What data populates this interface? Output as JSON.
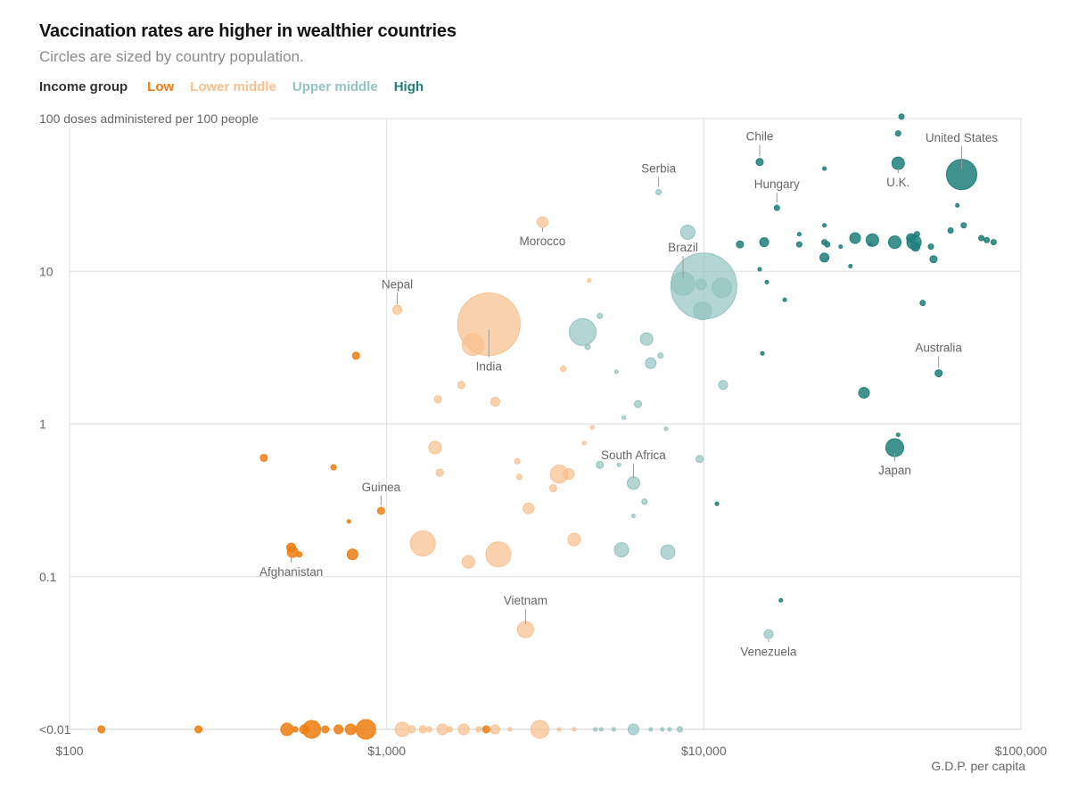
{
  "header": {
    "title": "Vaccination rates are higher in wealthier countries",
    "subtitle": "Circles are sized by country population."
  },
  "legend": {
    "title": "Income group",
    "items": [
      {
        "key": "low",
        "label": "Low",
        "color": "#f07d10"
      },
      {
        "key": "lower_middle",
        "label": "Lower middle",
        "color": "#f9bf8c"
      },
      {
        "key": "upper_middle",
        "label": "Upper middle",
        "color": "#93c3c1"
      },
      {
        "key": "high",
        "label": "High",
        "color": "#1f7f7b"
      }
    ]
  },
  "chart_data": {
    "type": "scatter",
    "x_scale": "log",
    "y_scale": "log",
    "xlim": [
      100,
      100000
    ],
    "ylim": [
      0.01,
      100
    ],
    "xlabel": "G.D.P. per capita",
    "ylabel": "100 doses administered per 100 people",
    "x_ticks": [
      {
        "value": 100,
        "label": "$100"
      },
      {
        "value": 1000,
        "label": "$1,000"
      },
      {
        "value": 10000,
        "label": "$10,000"
      },
      {
        "value": 100000,
        "label": "$100,000"
      }
    ],
    "y_ticks": [
      {
        "value": 100,
        "label": ""
      },
      {
        "value": 10,
        "label": "10"
      },
      {
        "value": 1,
        "label": "1"
      },
      {
        "value": 0.1,
        "label": "0.1"
      },
      {
        "value": 0.01,
        "label": "<0.01"
      }
    ],
    "size_encoding": "population",
    "grid": true,
    "points": [
      {
        "x": 42000,
        "y": 103,
        "g": "high",
        "s": 3
      },
      {
        "x": 41000,
        "y": 80,
        "g": "high",
        "s": 3
      },
      {
        "x": 15000,
        "y": 52,
        "g": "high",
        "s": 4
      },
      {
        "x": 24000,
        "y": 47,
        "g": "high",
        "s": 2
      },
      {
        "x": 41000,
        "y": 51,
        "g": "high",
        "s": 7
      },
      {
        "x": 65000,
        "y": 43,
        "g": "high",
        "s": 17
      },
      {
        "x": 17000,
        "y": 26,
        "g": "high",
        "s": 3
      },
      {
        "x": 63000,
        "y": 27,
        "g": "high",
        "s": 2
      },
      {
        "x": 24000,
        "y": 20,
        "g": "high",
        "s": 2
      },
      {
        "x": 66000,
        "y": 20,
        "g": "high",
        "s": 3
      },
      {
        "x": 60000,
        "y": 18.5,
        "g": "high",
        "s": 3
      },
      {
        "x": 20000,
        "y": 17.5,
        "g": "high",
        "s": 2
      },
      {
        "x": 30000,
        "y": 16.5,
        "g": "high",
        "s": 6
      },
      {
        "x": 34000,
        "y": 16,
        "g": "high",
        "s": 7
      },
      {
        "x": 45000,
        "y": 16.5,
        "g": "high",
        "s": 5
      },
      {
        "x": 47000,
        "y": 17.5,
        "g": "high",
        "s": 3
      },
      {
        "x": 75000,
        "y": 16.5,
        "g": "high",
        "s": 3
      },
      {
        "x": 78000,
        "y": 16,
        "g": "high",
        "s": 3
      },
      {
        "x": 82000,
        "y": 15.5,
        "g": "high",
        "s": 3
      },
      {
        "x": 15500,
        "y": 15.5,
        "g": "high",
        "s": 5
      },
      {
        "x": 13000,
        "y": 15,
        "g": "high",
        "s": 4
      },
      {
        "x": 20000,
        "y": 15,
        "g": "high",
        "s": 3
      },
      {
        "x": 24000,
        "y": 15.5,
        "g": "high",
        "s": 3
      },
      {
        "x": 24500,
        "y": 15,
        "g": "high",
        "s": 3
      },
      {
        "x": 33500,
        "y": 15,
        "g": "high",
        "s": 2
      },
      {
        "x": 40000,
        "y": 15.5,
        "g": "high",
        "s": 7
      },
      {
        "x": 46000,
        "y": 15.5,
        "g": "high",
        "s": 8
      },
      {
        "x": 46500,
        "y": 14.5,
        "g": "high",
        "s": 5
      },
      {
        "x": 52000,
        "y": 14.5,
        "g": "high",
        "s": 3
      },
      {
        "x": 27000,
        "y": 14.5,
        "g": "high",
        "s": 2
      },
      {
        "x": 24000,
        "y": 12.3,
        "g": "high",
        "s": 5
      },
      {
        "x": 53000,
        "y": 12,
        "g": "high",
        "s": 4
      },
      {
        "x": 29000,
        "y": 10.8,
        "g": "high",
        "s": 2
      },
      {
        "x": 15000,
        "y": 10.3,
        "g": "high",
        "s": 2
      },
      {
        "x": 15800,
        "y": 8.5,
        "g": "high",
        "s": 2
      },
      {
        "x": 18000,
        "y": 6.5,
        "g": "high",
        "s": 2
      },
      {
        "x": 49000,
        "y": 6.2,
        "g": "high",
        "s": 3
      },
      {
        "x": 15300,
        "y": 2.9,
        "g": "high",
        "s": 2
      },
      {
        "x": 55000,
        "y": 2.15,
        "g": "high",
        "s": 4
      },
      {
        "x": 32000,
        "y": 1.6,
        "g": "high",
        "s": 6
      },
      {
        "x": 40000,
        "y": 0.7,
        "g": "high",
        "s": 10
      },
      {
        "x": 41000,
        "y": 0.85,
        "g": "high",
        "s": 2
      },
      {
        "x": 11000,
        "y": 0.3,
        "g": "high",
        "s": 2
      },
      {
        "x": 17500,
        "y": 0.07,
        "g": "high",
        "s": 2
      },
      {
        "x": 7200,
        "y": 33,
        "g": "upper_middle",
        "s": 3
      },
      {
        "x": 8900,
        "y": 18,
        "g": "upper_middle",
        "s": 8
      },
      {
        "x": 10000,
        "y": 8,
        "g": "upper_middle",
        "s": 37
      },
      {
        "x": 8600,
        "y": 8.3,
        "g": "upper_middle",
        "s": 13
      },
      {
        "x": 11400,
        "y": 7.8,
        "g": "upper_middle",
        "s": 11
      },
      {
        "x": 9900,
        "y": 5.5,
        "g": "upper_middle",
        "s": 10
      },
      {
        "x": 9800,
        "y": 8.2,
        "g": "upper_middle",
        "s": 6
      },
      {
        "x": 4150,
        "y": 4,
        "g": "upper_middle",
        "s": 15
      },
      {
        "x": 4700,
        "y": 5.1,
        "g": "upper_middle",
        "s": 3
      },
      {
        "x": 4300,
        "y": 3.2,
        "g": "upper_middle",
        "s": 3
      },
      {
        "x": 6600,
        "y": 3.6,
        "g": "upper_middle",
        "s": 7
      },
      {
        "x": 7300,
        "y": 2.8,
        "g": "upper_middle",
        "s": 3
      },
      {
        "x": 6800,
        "y": 2.5,
        "g": "upper_middle",
        "s": 6
      },
      {
        "x": 5300,
        "y": 2.2,
        "g": "upper_middle",
        "s": 2
      },
      {
        "x": 11500,
        "y": 1.8,
        "g": "upper_middle",
        "s": 5
      },
      {
        "x": 6200,
        "y": 1.35,
        "g": "upper_middle",
        "s": 4
      },
      {
        "x": 5600,
        "y": 1.1,
        "g": "upper_middle",
        "s": 2
      },
      {
        "x": 7600,
        "y": 0.93,
        "g": "upper_middle",
        "s": 2
      },
      {
        "x": 9700,
        "y": 0.59,
        "g": "upper_middle",
        "s": 4
      },
      {
        "x": 4700,
        "y": 0.54,
        "g": "upper_middle",
        "s": 4
      },
      {
        "x": 5400,
        "y": 0.54,
        "g": "upper_middle",
        "s": 2
      },
      {
        "x": 6000,
        "y": 0.41,
        "g": "upper_middle",
        "s": 7
      },
      {
        "x": 6500,
        "y": 0.31,
        "g": "upper_middle",
        "s": 3
      },
      {
        "x": 6000,
        "y": 0.25,
        "g": "upper_middle",
        "s": 2
      },
      {
        "x": 5500,
        "y": 0.15,
        "g": "upper_middle",
        "s": 8
      },
      {
        "x": 7700,
        "y": 0.145,
        "g": "upper_middle",
        "s": 8
      },
      {
        "x": 16000,
        "y": 0.042,
        "g": "upper_middle",
        "s": 5
      },
      {
        "x": 3100,
        "y": 21,
        "g": "lower_middle",
        "s": 6
      },
      {
        "x": 4350,
        "y": 8.7,
        "g": "lower_middle",
        "s": 2
      },
      {
        "x": 1080,
        "y": 5.6,
        "g": "lower_middle",
        "s": 5
      },
      {
        "x": 2100,
        "y": 4.5,
        "g": "lower_middle",
        "s": 35
      },
      {
        "x": 1870,
        "y": 3.3,
        "g": "lower_middle",
        "s": 12
      },
      {
        "x": 3600,
        "y": 2.3,
        "g": "lower_middle",
        "s": 3
      },
      {
        "x": 1720,
        "y": 1.8,
        "g": "lower_middle",
        "s": 4
      },
      {
        "x": 1450,
        "y": 1.45,
        "g": "lower_middle",
        "s": 4
      },
      {
        "x": 2200,
        "y": 1.4,
        "g": "lower_middle",
        "s": 5
      },
      {
        "x": 4450,
        "y": 0.95,
        "g": "lower_middle",
        "s": 2
      },
      {
        "x": 4200,
        "y": 0.75,
        "g": "lower_middle",
        "s": 2
      },
      {
        "x": 1420,
        "y": 0.7,
        "g": "lower_middle",
        "s": 7
      },
      {
        "x": 2580,
        "y": 0.57,
        "g": "lower_middle",
        "s": 3
      },
      {
        "x": 3500,
        "y": 0.47,
        "g": "lower_middle",
        "s": 10
      },
      {
        "x": 3750,
        "y": 0.47,
        "g": "lower_middle",
        "s": 6
      },
      {
        "x": 1470,
        "y": 0.48,
        "g": "lower_middle",
        "s": 4
      },
      {
        "x": 2620,
        "y": 0.45,
        "g": "lower_middle",
        "s": 3
      },
      {
        "x": 3350,
        "y": 0.38,
        "g": "lower_middle",
        "s": 4
      },
      {
        "x": 2800,
        "y": 0.28,
        "g": "lower_middle",
        "s": 6
      },
      {
        "x": 1300,
        "y": 0.165,
        "g": "lower_middle",
        "s": 14
      },
      {
        "x": 3900,
        "y": 0.175,
        "g": "lower_middle",
        "s": 7
      },
      {
        "x": 2250,
        "y": 0.14,
        "g": "lower_middle",
        "s": 14
      },
      {
        "x": 1810,
        "y": 0.125,
        "g": "lower_middle",
        "s": 7
      },
      {
        "x": 2740,
        "y": 0.045,
        "g": "lower_middle",
        "s": 9
      },
      {
        "x": 800,
        "y": 2.8,
        "g": "low",
        "s": 4
      },
      {
        "x": 410,
        "y": 0.6,
        "g": "low",
        "s": 4
      },
      {
        "x": 680,
        "y": 0.52,
        "g": "low",
        "s": 3
      },
      {
        "x": 960,
        "y": 0.27,
        "g": "low",
        "s": 4
      },
      {
        "x": 760,
        "y": 0.23,
        "g": "low",
        "s": 2
      },
      {
        "x": 500,
        "y": 0.155,
        "g": "low",
        "s": 5
      },
      {
        "x": 505,
        "y": 0.145,
        "g": "low",
        "s": 6
      },
      {
        "x": 530,
        "y": 0.14,
        "g": "low",
        "s": 3
      },
      {
        "x": 780,
        "y": 0.14,
        "g": "low",
        "s": 6
      },
      {
        "x": 126,
        "y": 0.01,
        "g": "low",
        "s": 4
      },
      {
        "x": 255,
        "y": 0.01,
        "g": "low",
        "s": 4
      },
      {
        "x": 485,
        "y": 0.01,
        "g": "low",
        "s": 7
      },
      {
        "x": 515,
        "y": 0.01,
        "g": "low",
        "s": 3
      },
      {
        "x": 550,
        "y": 0.01,
        "g": "low",
        "s": 5
      },
      {
        "x": 580,
        "y": 0.01,
        "g": "low",
        "s": 10
      },
      {
        "x": 640,
        "y": 0.01,
        "g": "low",
        "s": 4
      },
      {
        "x": 705,
        "y": 0.01,
        "g": "low",
        "s": 5
      },
      {
        "x": 770,
        "y": 0.01,
        "g": "low",
        "s": 6
      },
      {
        "x": 860,
        "y": 0.01,
        "g": "low",
        "s": 11
      },
      {
        "x": 2060,
        "y": 0.01,
        "g": "low",
        "s": 4
      },
      {
        "x": 1120,
        "y": 0.01,
        "g": "lower_middle",
        "s": 8
      },
      {
        "x": 1200,
        "y": 0.01,
        "g": "lower_middle",
        "s": 4
      },
      {
        "x": 1300,
        "y": 0.01,
        "g": "lower_middle",
        "s": 4
      },
      {
        "x": 1360,
        "y": 0.01,
        "g": "lower_middle",
        "s": 3
      },
      {
        "x": 1500,
        "y": 0.01,
        "g": "lower_middle",
        "s": 6
      },
      {
        "x": 1580,
        "y": 0.01,
        "g": "lower_middle",
        "s": 3
      },
      {
        "x": 1750,
        "y": 0.01,
        "g": "lower_middle",
        "s": 6
      },
      {
        "x": 1950,
        "y": 0.01,
        "g": "lower_middle",
        "s": 3
      },
      {
        "x": 2200,
        "y": 0.01,
        "g": "lower_middle",
        "s": 5
      },
      {
        "x": 2450,
        "y": 0.01,
        "g": "lower_middle",
        "s": 2
      },
      {
        "x": 3040,
        "y": 0.01,
        "g": "lower_middle",
        "s": 10
      },
      {
        "x": 3500,
        "y": 0.01,
        "g": "lower_middle",
        "s": 2
      },
      {
        "x": 3900,
        "y": 0.01,
        "g": "lower_middle",
        "s": 2
      },
      {
        "x": 4550,
        "y": 0.01,
        "g": "upper_middle",
        "s": 2
      },
      {
        "x": 4750,
        "y": 0.01,
        "g": "upper_middle",
        "s": 2
      },
      {
        "x": 5200,
        "y": 0.01,
        "g": "upper_middle",
        "s": 2
      },
      {
        "x": 6000,
        "y": 0.01,
        "g": "upper_middle",
        "s": 6
      },
      {
        "x": 6800,
        "y": 0.01,
        "g": "upper_middle",
        "s": 2
      },
      {
        "x": 7400,
        "y": 0.01,
        "g": "upper_middle",
        "s": 2
      },
      {
        "x": 7800,
        "y": 0.01,
        "g": "upper_middle",
        "s": 2
      },
      {
        "x": 8400,
        "y": 0.01,
        "g": "upper_middle",
        "s": 3
      }
    ],
    "annotations": [
      {
        "label": "Chile",
        "x": 15000,
        "y": 52,
        "dx": 0,
        "dy": -24,
        "leader": true
      },
      {
        "label": "United States",
        "x": 65000,
        "y": 43,
        "dx": 0,
        "dy": -37,
        "leader": true
      },
      {
        "label": "Serbia",
        "x": 7200,
        "y": 33,
        "dx": 0,
        "dy": -22,
        "leader": true
      },
      {
        "label": "Hungary",
        "x": 17000,
        "y": 26,
        "dx": 0,
        "dy": -22,
        "leader": true
      },
      {
        "label": "U.K.",
        "x": 41000,
        "y": 51,
        "dx": 0,
        "dy": 26,
        "leader": true
      },
      {
        "label": "Morocco",
        "x": 3100,
        "y": 21,
        "dx": 0,
        "dy": 26,
        "leader": true
      },
      {
        "label": "Brazil",
        "x": 8600,
        "y": 8.3,
        "dx": 0,
        "dy": -36,
        "leader": true
      },
      {
        "label": "Nepal",
        "x": 1080,
        "y": 5.6,
        "dx": 0,
        "dy": -24,
        "leader": true
      },
      {
        "label": "India",
        "x": 2100,
        "y": 4.5,
        "dx": 0,
        "dy": 52,
        "leader": true
      },
      {
        "label": "Australia",
        "x": 55000,
        "y": 2.15,
        "dx": 0,
        "dy": -24,
        "leader": true
      },
      {
        "label": "South Africa",
        "x": 6000,
        "y": 0.41,
        "dx": 0,
        "dy": -27,
        "leader": true
      },
      {
        "label": "Japan",
        "x": 40000,
        "y": 0.7,
        "dx": 0,
        "dy": 30,
        "leader": true
      },
      {
        "label": "Guinea",
        "x": 960,
        "y": 0.27,
        "dx": 0,
        "dy": -22,
        "leader": true
      },
      {
        "label": "Afghanistan",
        "x": 500,
        "y": 0.145,
        "dx": 0,
        "dy": 27,
        "leader": true
      },
      {
        "label": "Vietnam",
        "x": 2740,
        "y": 0.045,
        "dx": 0,
        "dy": -28,
        "leader": true
      },
      {
        "label": "Venezuela",
        "x": 16000,
        "y": 0.042,
        "dx": 0,
        "dy": 24,
        "leader": true
      }
    ]
  }
}
